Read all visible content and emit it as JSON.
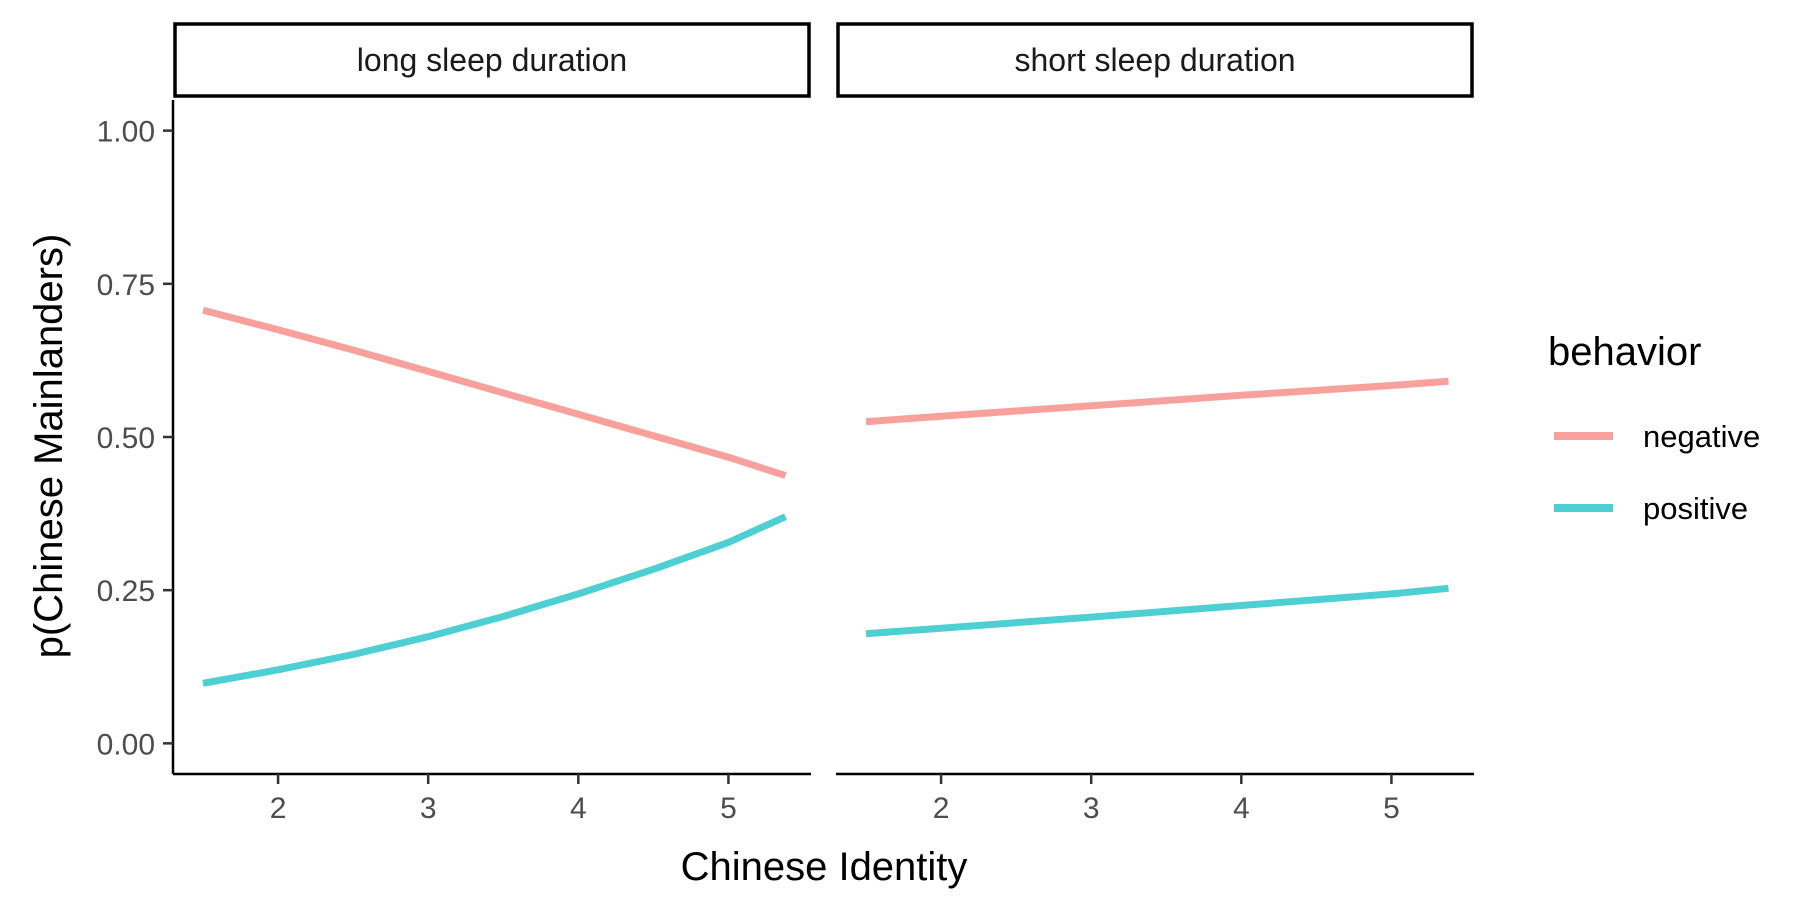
{
  "chart_data": {
    "type": "line",
    "x_label": "Chinese Identity",
    "y_label": "p(Chinese Mainlanders)",
    "x_ticks": [
      "2",
      "3",
      "4",
      "5"
    ],
    "y_ticks": [
      "0.00",
      "0.25",
      "0.50",
      "0.75",
      "1.00"
    ],
    "xlim": [
      1.3,
      5.55
    ],
    "ylim": [
      -0.05,
      1.05
    ],
    "legend": {
      "title": "behavior",
      "placement": "right",
      "entries": [
        {
          "label": "negative",
          "color": "#F8A09C"
        },
        {
          "label": "positive",
          "color": "#4ECFD3"
        }
      ]
    },
    "panels": [
      {
        "strip": "long sleep duration",
        "series": [
          {
            "name": "negative",
            "color": "#F8A09C",
            "x": [
              1.5,
              2,
              2.5,
              3,
              3.5,
              4,
              4.5,
              5,
              5.38
            ],
            "y": [
              0.707,
              0.675,
              0.642,
              0.607,
              0.572,
              0.537,
              0.502,
              0.467,
              0.437
            ]
          },
          {
            "name": "positive",
            "color": "#4ECFD3",
            "x": [
              1.5,
              2,
              2.5,
              3,
              3.5,
              4,
              4.5,
              5,
              5.38
            ],
            "y": [
              0.098,
              0.12,
              0.145,
              0.174,
              0.207,
              0.244,
              0.284,
              0.328,
              0.37
            ]
          }
        ]
      },
      {
        "strip": "short sleep duration",
        "series": [
          {
            "name": "negative",
            "color": "#F8A09C",
            "x": [
              1.5,
              2,
              3,
              4,
              5,
              5.38
            ],
            "y": [
              0.525,
              0.534,
              0.551,
              0.568,
              0.584,
              0.591
            ]
          },
          {
            "name": "positive",
            "color": "#4ECFD3",
            "x": [
              1.5,
              2,
              3,
              4,
              5,
              5.38
            ],
            "y": [
              0.179,
              0.188,
              0.206,
              0.225,
              0.244,
              0.253
            ]
          }
        ]
      }
    ]
  }
}
